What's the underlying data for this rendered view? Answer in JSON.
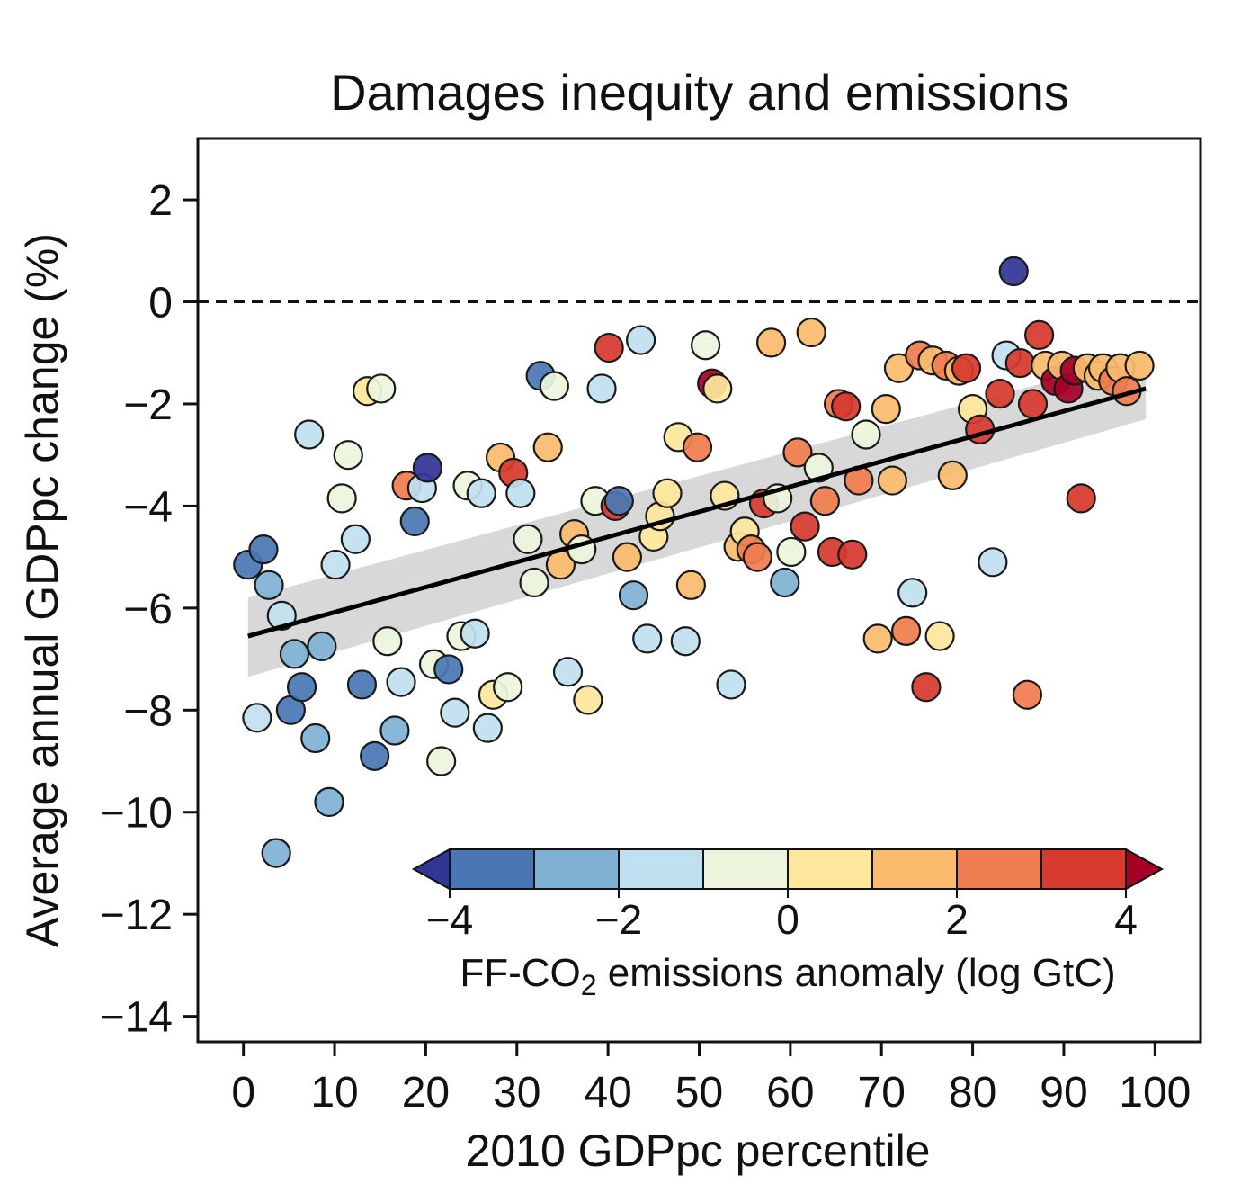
{
  "chart_data": {
    "type": "scatter",
    "title": "Damages inequity and emissions",
    "xlabel": "2010 GDPpc percentile",
    "ylabel": "Average annual GDPpc change (%)",
    "xlim": [
      -5,
      105
    ],
    "ylim": [
      -14.5,
      3.2
    ],
    "x_ticks": [
      0,
      10,
      20,
      30,
      40,
      50,
      60,
      70,
      80,
      90,
      100
    ],
    "y_ticks": [
      2,
      0,
      -2,
      -4,
      -6,
      -8,
      -10,
      -12,
      -14
    ],
    "y_tick_labels": [
      "2",
      "0",
      "−2",
      "−4",
      "−6",
      "−8",
      "−10",
      "−12",
      "−14"
    ],
    "zero_line": "dashed",
    "grid": false,
    "trend_line": {
      "x": [
        0.5,
        99
      ],
      "y": [
        -6.55,
        -1.7
      ]
    },
    "confidence_band": {
      "x": [
        0.5,
        99
      ],
      "lower": [
        -7.35,
        -2.3
      ],
      "upper": [
        -5.8,
        -1.05
      ]
    },
    "colorbar": {
      "label_main": "FF-CO",
      "label_sub": "2",
      "label_rest": " emissions anomaly (log GtC)",
      "placement": "bottom-right inside plot",
      "min": -4,
      "max": 4,
      "step": 1,
      "extend": "both",
      "ticks": [
        -4,
        -2,
        0,
        2,
        4
      ],
      "tick_labels": [
        "−4",
        "−2",
        "0",
        "2",
        "4"
      ],
      "colors": [
        "#4a77b4",
        "#7fb1d4",
        "#bfe0ef",
        "#ecf5dc",
        "#fde79c",
        "#fbbb6e",
        "#f07d4f",
        "#d73a2e"
      ],
      "under_color": "#313695",
      "over_color": "#a50026"
    },
    "points": [
      {
        "x": 0.5,
        "y": -5.15,
        "c": -3.5
      },
      {
        "x": 1.5,
        "y": -8.15,
        "c": -1.5
      },
      {
        "x": 2.2,
        "y": -4.85,
        "c": -3.5
      },
      {
        "x": 2.8,
        "y": -5.55,
        "c": -2.5
      },
      {
        "x": 3.6,
        "y": -10.8,
        "c": -2.5
      },
      {
        "x": 4.2,
        "y": -6.15,
        "c": -1.5
      },
      {
        "x": 5.2,
        "y": -8.0,
        "c": -3.5
      },
      {
        "x": 5.6,
        "y": -6.9,
        "c": -2.5
      },
      {
        "x": 6.4,
        "y": -7.55,
        "c": -3.5
      },
      {
        "x": 7.2,
        "y": -2.6,
        "c": -1.5
      },
      {
        "x": 7.9,
        "y": -8.55,
        "c": -2.5
      },
      {
        "x": 8.6,
        "y": -6.75,
        "c": -2.5
      },
      {
        "x": 9.4,
        "y": -9.8,
        "c": -2.5
      },
      {
        "x": 10.1,
        "y": -5.15,
        "c": -1.5
      },
      {
        "x": 10.8,
        "y": -3.85,
        "c": -0.5
      },
      {
        "x": 11.5,
        "y": -3.0,
        "c": -0.5
      },
      {
        "x": 12.3,
        "y": -4.65,
        "c": -1.5
      },
      {
        "x": 13.0,
        "y": -7.5,
        "c": -3.5
      },
      {
        "x": 13.6,
        "y": -1.75,
        "c": 0.5
      },
      {
        "x": 14.4,
        "y": -8.9,
        "c": -3.5
      },
      {
        "x": 15.1,
        "y": -1.7,
        "c": -0.5
      },
      {
        "x": 15.8,
        "y": -6.65,
        "c": -0.5
      },
      {
        "x": 16.6,
        "y": -8.4,
        "c": -2.5
      },
      {
        "x": 17.3,
        "y": -7.45,
        "c": -1.5
      },
      {
        "x": 17.9,
        "y": -3.6,
        "c": 2.5
      },
      {
        "x": 18.8,
        "y": -4.3,
        "c": -3.5
      },
      {
        "x": 19.6,
        "y": -3.65,
        "c": -1.5
      },
      {
        "x": 20.2,
        "y": -3.25,
        "c": -4.5
      },
      {
        "x": 20.9,
        "y": -7.1,
        "c": -0.5
      },
      {
        "x": 21.7,
        "y": -9.0,
        "c": -0.5
      },
      {
        "x": 22.5,
        "y": -7.2,
        "c": -3.5
      },
      {
        "x": 23.2,
        "y": -8.05,
        "c": -1.5
      },
      {
        "x": 23.9,
        "y": -6.55,
        "c": -0.5
      },
      {
        "x": 24.6,
        "y": -3.6,
        "c": -0.5
      },
      {
        "x": 25.4,
        "y": -6.5,
        "c": -1.5
      },
      {
        "x": 26.1,
        "y": -3.75,
        "c": -1.5
      },
      {
        "x": 26.8,
        "y": -8.35,
        "c": -1.5
      },
      {
        "x": 27.4,
        "y": -7.7,
        "c": 0.5
      },
      {
        "x": 28.2,
        "y": -3.05,
        "c": 1.5
      },
      {
        "x": 29.0,
        "y": -7.55,
        "c": -0.5
      },
      {
        "x": 29.6,
        "y": -3.35,
        "c": 3.5
      },
      {
        "x": 30.4,
        "y": -3.75,
        "c": -1.5
      },
      {
        "x": 31.2,
        "y": -4.65,
        "c": -0.5
      },
      {
        "x": 31.9,
        "y": -5.5,
        "c": -0.5
      },
      {
        "x": 32.6,
        "y": -1.45,
        "c": -3.5
      },
      {
        "x": 33.4,
        "y": -2.85,
        "c": 1.5
      },
      {
        "x": 34.1,
        "y": -1.65,
        "c": -0.5
      },
      {
        "x": 34.8,
        "y": -5.15,
        "c": 1.5
      },
      {
        "x": 35.6,
        "y": -7.25,
        "c": -1.5
      },
      {
        "x": 36.3,
        "y": -4.55,
        "c": 1.5
      },
      {
        "x": 37.1,
        "y": -4.85,
        "c": -0.5
      },
      {
        "x": 37.8,
        "y": -7.8,
        "c": 0.5
      },
      {
        "x": 38.6,
        "y": -3.9,
        "c": -0.5
      },
      {
        "x": 39.3,
        "y": -1.7,
        "c": -1.5
      },
      {
        "x": 40.1,
        "y": -0.9,
        "c": 3.5
      },
      {
        "x": 40.8,
        "y": -4.0,
        "c": 3.5
      },
      {
        "x": 41.2,
        "y": -3.9,
        "c": -3.5
      },
      {
        "x": 42.1,
        "y": -5.0,
        "c": 1.5
      },
      {
        "x": 42.8,
        "y": -5.75,
        "c": -2.5
      },
      {
        "x": 43.6,
        "y": -0.75,
        "c": -1.5
      },
      {
        "x": 44.3,
        "y": -6.6,
        "c": -1.5
      },
      {
        "x": 45.0,
        "y": -4.6,
        "c": 0.5
      },
      {
        "x": 45.7,
        "y": -4.2,
        "c": 0.5
      },
      {
        "x": 46.5,
        "y": -3.75,
        "c": 0.5
      },
      {
        "x": 47.7,
        "y": -2.65,
        "c": 0.5
      },
      {
        "x": 48.5,
        "y": -6.65,
        "c": -1.5
      },
      {
        "x": 49.1,
        "y": -5.55,
        "c": 1.5
      },
      {
        "x": 49.8,
        "y": -2.85,
        "c": 2.5
      },
      {
        "x": 50.7,
        "y": -0.85,
        "c": -0.5
      },
      {
        "x": 51.4,
        "y": -1.6,
        "c": 4.5
      },
      {
        "x": 52.0,
        "y": -1.7,
        "c": 0.5
      },
      {
        "x": 52.8,
        "y": -3.8,
        "c": 0.5
      },
      {
        "x": 53.5,
        "y": -7.5,
        "c": -1.5
      },
      {
        "x": 54.3,
        "y": -4.8,
        "c": 1.5
      },
      {
        "x": 55.0,
        "y": -4.5,
        "c": 0.5
      },
      {
        "x": 55.7,
        "y": -4.85,
        "c": 2.5
      },
      {
        "x": 56.4,
        "y": -5.0,
        "c": 2.5
      },
      {
        "x": 57.1,
        "y": -3.95,
        "c": 3.5
      },
      {
        "x": 57.9,
        "y": -0.8,
        "c": 1.5
      },
      {
        "x": 58.6,
        "y": -3.85,
        "c": -0.5
      },
      {
        "x": 59.4,
        "y": -5.5,
        "c": -2.5
      },
      {
        "x": 60.1,
        "y": -4.9,
        "c": -0.5
      },
      {
        "x": 60.8,
        "y": -2.95,
        "c": 2.5
      },
      {
        "x": 61.6,
        "y": -4.4,
        "c": 3.5
      },
      {
        "x": 62.3,
        "y": -0.6,
        "c": 1.5
      },
      {
        "x": 63.1,
        "y": -3.25,
        "c": -0.5
      },
      {
        "x": 63.8,
        "y": -3.9,
        "c": 2.5
      },
      {
        "x": 64.6,
        "y": -4.9,
        "c": 3.5
      },
      {
        "x": 65.3,
        "y": -2.0,
        "c": 2.5
      },
      {
        "x": 66.1,
        "y": -2.05,
        "c": 3.5
      },
      {
        "x": 66.8,
        "y": -4.95,
        "c": 3.5
      },
      {
        "x": 67.5,
        "y": -3.5,
        "c": 2.5
      },
      {
        "x": 68.3,
        "y": -2.6,
        "c": -0.5
      },
      {
        "x": 69.6,
        "y": -6.6,
        "c": 1.5
      },
      {
        "x": 70.5,
        "y": -2.1,
        "c": 1.5
      },
      {
        "x": 71.2,
        "y": -3.5,
        "c": 1.5
      },
      {
        "x": 71.9,
        "y": -1.3,
        "c": 1.5
      },
      {
        "x": 72.7,
        "y": -6.45,
        "c": 2.5
      },
      {
        "x": 73.4,
        "y": -5.7,
        "c": -1.5
      },
      {
        "x": 74.2,
        "y": -1.05,
        "c": 2.5
      },
      {
        "x": 74.9,
        "y": -7.55,
        "c": 3.5
      },
      {
        "x": 75.6,
        "y": -1.15,
        "c": 1.5
      },
      {
        "x": 76.4,
        "y": -6.55,
        "c": 0.5
      },
      {
        "x": 77.1,
        "y": -1.25,
        "c": 2.5
      },
      {
        "x": 77.8,
        "y": -3.4,
        "c": 1.5
      },
      {
        "x": 78.5,
        "y": -1.35,
        "c": 1.5
      },
      {
        "x": 79.3,
        "y": -1.3,
        "c": 3.5
      },
      {
        "x": 80.0,
        "y": -2.1,
        "c": 0.5
      },
      {
        "x": 80.8,
        "y": -2.5,
        "c": 3.5
      },
      {
        "x": 82.2,
        "y": -5.1,
        "c": -1.5
      },
      {
        "x": 83.0,
        "y": -1.8,
        "c": 3.5
      },
      {
        "x": 83.7,
        "y": -1.05,
        "c": -1.5
      },
      {
        "x": 84.5,
        "y": 0.6,
        "c": -4.5
      },
      {
        "x": 85.2,
        "y": -1.2,
        "c": 3.5
      },
      {
        "x": 86.0,
        "y": -7.7,
        "c": 2.5
      },
      {
        "x": 86.6,
        "y": -2.0,
        "c": 3.5
      },
      {
        "x": 87.3,
        "y": -0.65,
        "c": 3.5
      },
      {
        "x": 88.0,
        "y": -1.25,
        "c": 1.5
      },
      {
        "x": 89.1,
        "y": -1.55,
        "c": 4.5
      },
      {
        "x": 89.8,
        "y": -1.25,
        "c": 1.5
      },
      {
        "x": 90.5,
        "y": -1.7,
        "c": 4.5
      },
      {
        "x": 91.2,
        "y": -1.35,
        "c": 4.5
      },
      {
        "x": 91.9,
        "y": -3.85,
        "c": 3.5
      },
      {
        "x": 92.6,
        "y": -1.3,
        "c": 1.5
      },
      {
        "x": 93.8,
        "y": -1.45,
        "c": 1.5
      },
      {
        "x": 94.3,
        "y": -1.3,
        "c": 1.5
      },
      {
        "x": 95.4,
        "y": -1.55,
        "c": 2.5
      },
      {
        "x": 96.2,
        "y": -1.3,
        "c": 1.5
      },
      {
        "x": 96.9,
        "y": -1.75,
        "c": 2.5
      },
      {
        "x": 98.3,
        "y": -1.25,
        "c": 1.5
      }
    ]
  }
}
